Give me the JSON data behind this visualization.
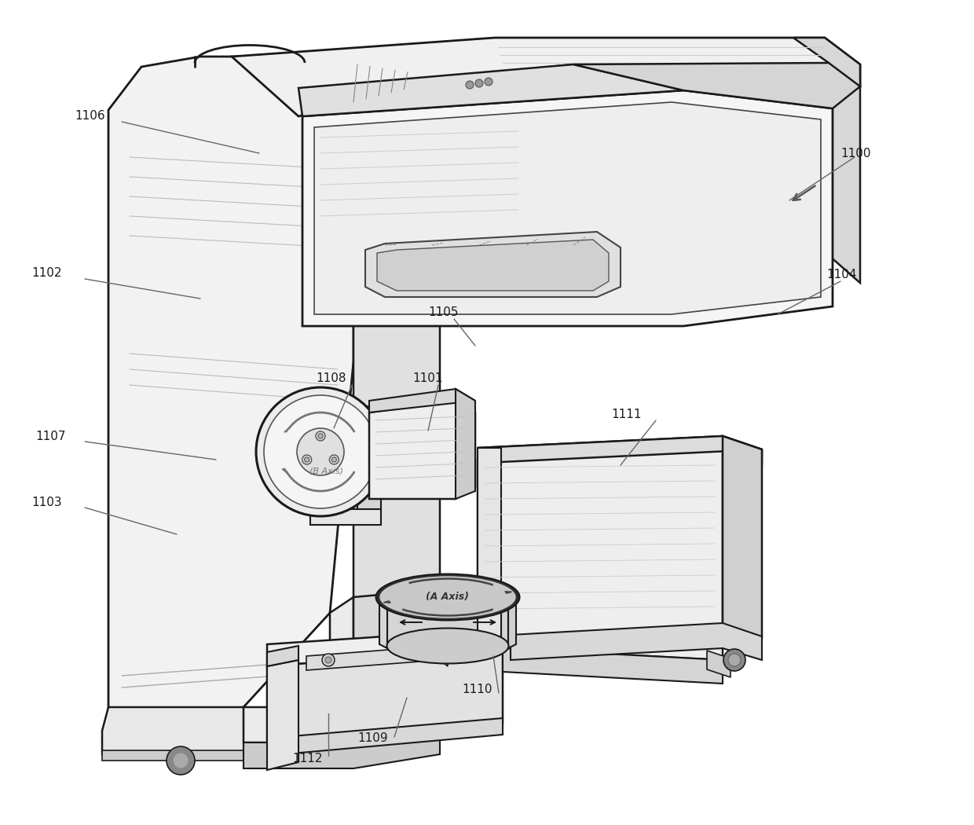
{
  "bg_color": "#ffffff",
  "line_color": "#1a1a1a",
  "gray_color": "#777777",
  "labels": [
    [
      "1100",
      1090,
      195
    ],
    [
      "1101",
      545,
      482
    ],
    [
      "1102",
      60,
      348
    ],
    [
      "1103",
      60,
      640
    ],
    [
      "1104",
      1072,
      350
    ],
    [
      "1105",
      565,
      398
    ],
    [
      "1106",
      115,
      148
    ],
    [
      "1107",
      65,
      555
    ],
    [
      "1108",
      422,
      482
    ],
    [
      "1109",
      475,
      940
    ],
    [
      "1110",
      608,
      878
    ],
    [
      "1111",
      798,
      528
    ],
    [
      "1112",
      392,
      965
    ]
  ],
  "leader_lines": [
    [
      "1100",
      1088,
      200,
      1005,
      255
    ],
    [
      "1101",
      558,
      490,
      545,
      548
    ],
    [
      "1102",
      108,
      355,
      255,
      380
    ],
    [
      "1103",
      108,
      646,
      225,
      680
    ],
    [
      "1104",
      1070,
      358,
      990,
      400
    ],
    [
      "1105",
      578,
      406,
      605,
      440
    ],
    [
      "1106",
      155,
      155,
      330,
      195
    ],
    [
      "1107",
      108,
      562,
      275,
      585
    ],
    [
      "1108",
      448,
      490,
      425,
      545
    ],
    [
      "1109",
      502,
      938,
      518,
      888
    ],
    [
      "1110",
      635,
      882,
      628,
      835
    ],
    [
      "1111",
      835,
      535,
      790,
      592
    ],
    [
      "1112",
      418,
      962,
      418,
      908
    ]
  ]
}
